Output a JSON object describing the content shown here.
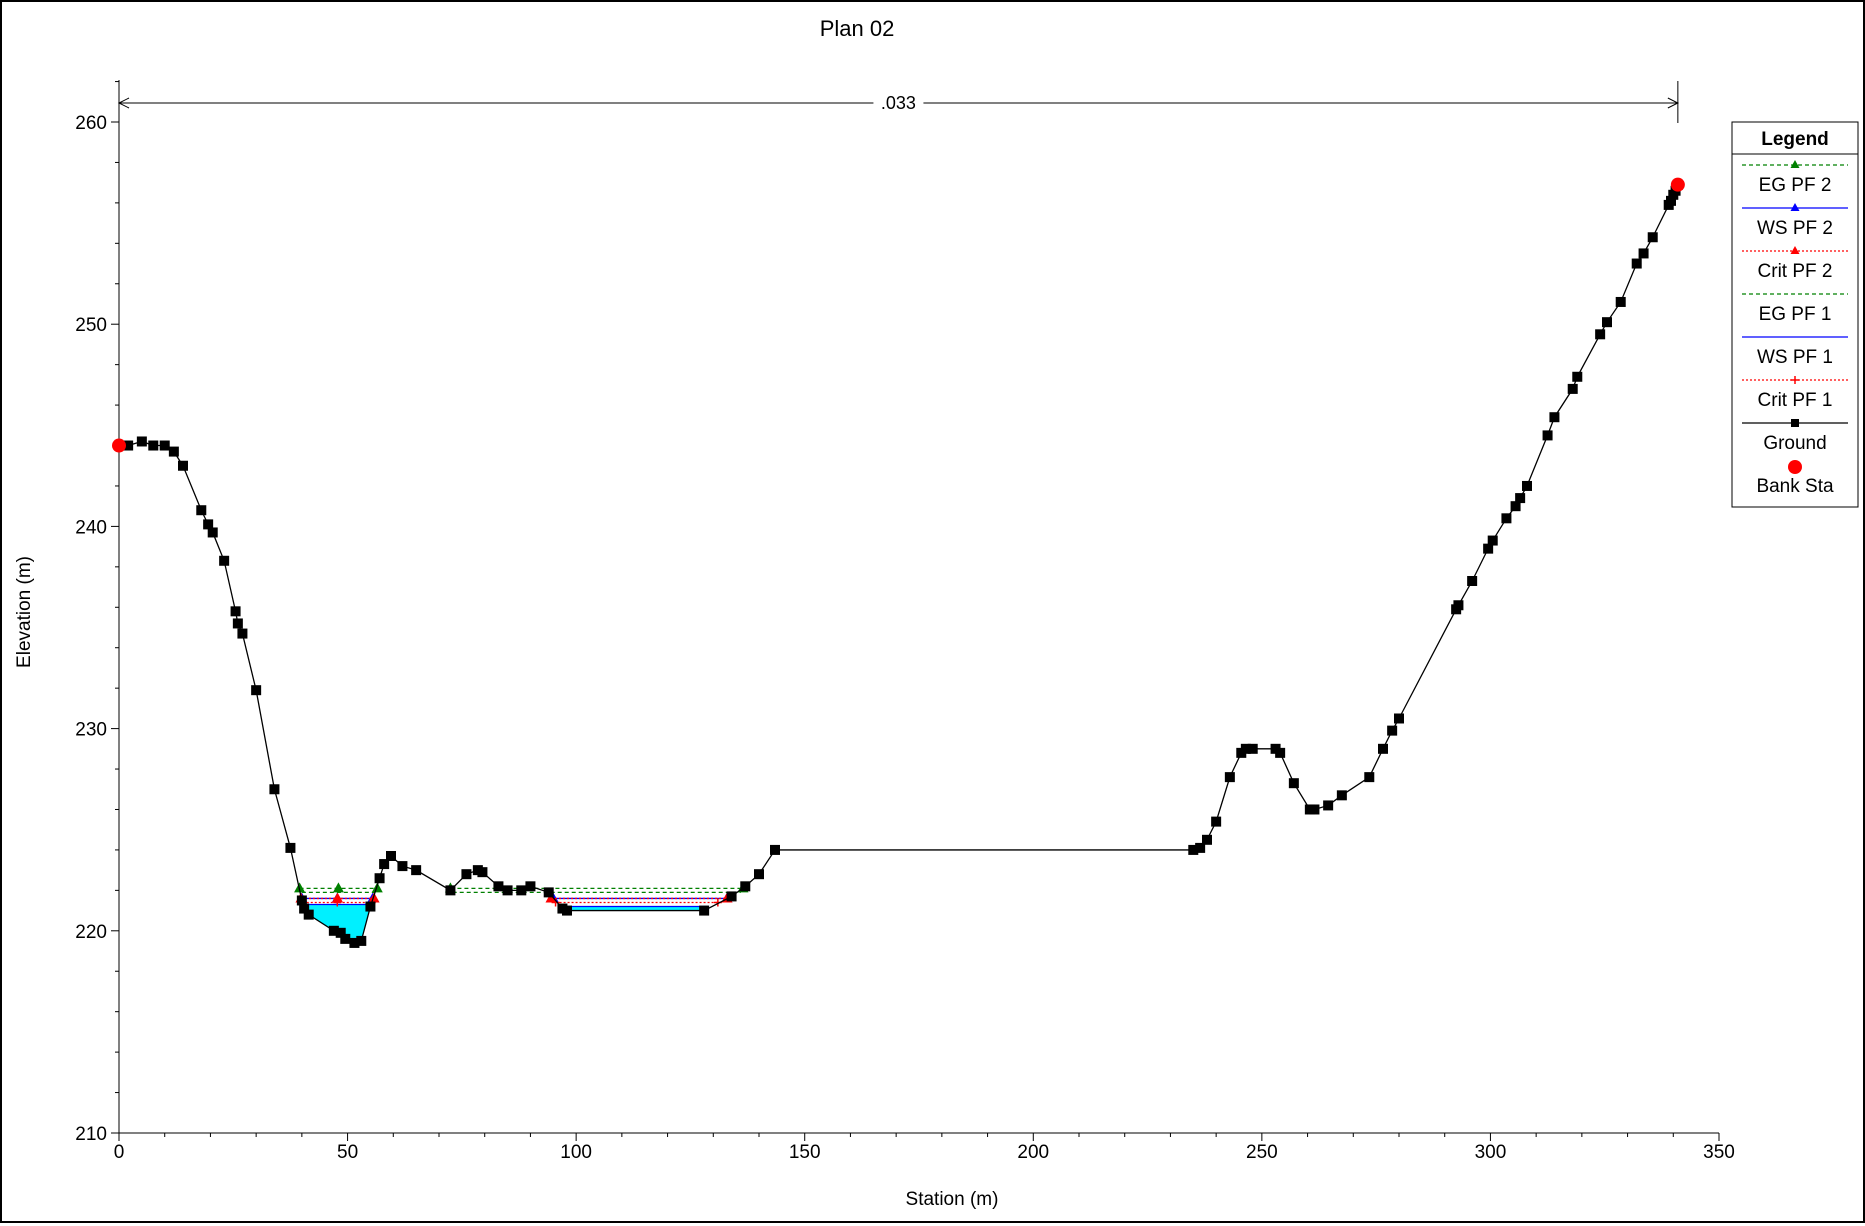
{
  "chart_data": {
    "type": "line",
    "title": "Plan 02",
    "xlabel": "Station (m)",
    "ylabel": "Elevation (m)",
    "xlim": [
      0,
      350
    ],
    "ylim": [
      210,
      262
    ],
    "xticks": [
      0,
      50,
      100,
      150,
      200,
      250,
      300,
      350
    ],
    "yticks": [
      210,
      220,
      230,
      240,
      250,
      260
    ],
    "grid": false,
    "legend_position": "right",
    "manning_n": {
      "label": ".033",
      "from": 0,
      "to": 341
    },
    "legend": {
      "title": "Legend",
      "items": [
        {
          "label": "EG PF 2",
          "color": "#008000",
          "line": "dashed",
          "marker": "triangle"
        },
        {
          "label": "WS PF 2",
          "color": "#0000ff",
          "line": "solid",
          "marker": "triangle"
        },
        {
          "label": "Crit PF 2",
          "color": "#ff0000",
          "line": "dotted",
          "marker": "triangle"
        },
        {
          "label": "EG PF 1",
          "color": "#008000",
          "line": "dashed",
          "marker": "none"
        },
        {
          "label": "WS PF 1",
          "color": "#0000ff",
          "line": "solid",
          "marker": "none"
        },
        {
          "label": "Crit PF 1",
          "color": "#ff0000",
          "line": "dotted",
          "marker": "plus"
        },
        {
          "label": "Ground",
          "color": "#000000",
          "line": "solid",
          "marker": "square"
        },
        {
          "label": "Bank Sta",
          "color": "#ff0000",
          "line": "none",
          "marker": "circle"
        }
      ]
    },
    "ground": {
      "name": "Ground",
      "color": "#000000",
      "points": [
        [
          0,
          244.0
        ],
        [
          2,
          244.0
        ],
        [
          5,
          244.2
        ],
        [
          7.5,
          244.0
        ],
        [
          10,
          244.0
        ],
        [
          12,
          243.7
        ],
        [
          14,
          243.0
        ],
        [
          18,
          240.8
        ],
        [
          19.5,
          240.1
        ],
        [
          20.5,
          239.7
        ],
        [
          23,
          238.3
        ],
        [
          25.5,
          235.8
        ],
        [
          26,
          235.2
        ],
        [
          27,
          234.7
        ],
        [
          30,
          231.9
        ],
        [
          34,
          227.0
        ],
        [
          37.5,
          224.1
        ],
        [
          40,
          221.5
        ],
        [
          40.5,
          221.1
        ],
        [
          41.5,
          220.8
        ],
        [
          47,
          220.0
        ],
        [
          48.5,
          219.9
        ],
        [
          49.5,
          219.6
        ],
        [
          51.5,
          219.4
        ],
        [
          53,
          219.5
        ],
        [
          55,
          221.2
        ],
        [
          57,
          222.6
        ],
        [
          58,
          223.3
        ],
        [
          59.5,
          223.7
        ],
        [
          62,
          223.2
        ],
        [
          65,
          223.0
        ],
        [
          72.5,
          222.0
        ],
        [
          76,
          222.8
        ],
        [
          78.5,
          223.0
        ],
        [
          79.5,
          222.9
        ],
        [
          83,
          222.2
        ],
        [
          85,
          222.0
        ],
        [
          88,
          222.0
        ],
        [
          90,
          222.2
        ],
        [
          94,
          221.9
        ],
        [
          97,
          221.1
        ],
        [
          98,
          221.0
        ],
        [
          128,
          221.0
        ],
        [
          134,
          221.7
        ],
        [
          137,
          222.2
        ],
        [
          140,
          222.8
        ],
        [
          143.5,
          224.0
        ],
        [
          235,
          224.0
        ],
        [
          236.5,
          224.1
        ],
        [
          238,
          224.5
        ],
        [
          240,
          225.4
        ],
        [
          243,
          227.6
        ],
        [
          245.5,
          228.8
        ],
        [
          246.5,
          229.0
        ],
        [
          248,
          229.0
        ],
        [
          253,
          229.0
        ],
        [
          254,
          228.8
        ],
        [
          257,
          227.3
        ],
        [
          260.5,
          226.0
        ],
        [
          261.5,
          226.0
        ],
        [
          264.5,
          226.2
        ],
        [
          267.5,
          226.7
        ],
        [
          273.5,
          227.6
        ],
        [
          276.5,
          229.0
        ],
        [
          278.5,
          229.9
        ],
        [
          280,
          230.5
        ],
        [
          292.5,
          235.9
        ],
        [
          293,
          236.1
        ],
        [
          296,
          237.3
        ],
        [
          299.5,
          238.9
        ],
        [
          300.5,
          239.3
        ],
        [
          303.5,
          240.4
        ],
        [
          305.5,
          241.0
        ],
        [
          306.5,
          241.4
        ],
        [
          308,
          242.0
        ],
        [
          312.5,
          244.5
        ],
        [
          314,
          245.4
        ],
        [
          318,
          246.8
        ],
        [
          319,
          247.4
        ],
        [
          324,
          249.5
        ],
        [
          325.5,
          250.1
        ],
        [
          328.5,
          251.1
        ],
        [
          332,
          253.0
        ],
        [
          333.5,
          253.5
        ],
        [
          335.5,
          254.3
        ],
        [
          339,
          255.9
        ],
        [
          339.5,
          256.1
        ],
        [
          340,
          256.4
        ],
        [
          340.5,
          256.6
        ],
        [
          341,
          256.9
        ]
      ]
    },
    "bank_stations": [
      [
        0,
        244.0
      ],
      [
        341,
        256.9
      ]
    ],
    "water_pools": [
      {
        "from": 40,
        "to": 55.5,
        "elevation": 221.3,
        "color": "#00f0ff"
      },
      {
        "from": 97,
        "to": 128.5,
        "elevation": 221.2,
        "color": "#00f0ff"
      }
    ],
    "series": [
      {
        "name": "EG PF 2",
        "color": "#008000",
        "dash": "4,3",
        "marker": "triangle",
        "segments": [
          [
            [
              39.5,
              222.1
            ],
            [
              56.5,
              222.1
            ]
          ],
          [
            [
              72.5,
              222.1
            ],
            [
              136.5,
              222.1
            ]
          ]
        ]
      },
      {
        "name": "WS PF 2",
        "color": "#0000ff",
        "dash": "",
        "marker": "triangle",
        "segments": [
          [
            [
              40,
              221.6
            ],
            [
              55.5,
              221.6
            ]
          ],
          [
            [
              95,
              221.6
            ],
            [
              133,
              221.6
            ]
          ]
        ]
      },
      {
        "name": "Crit PF 2",
        "color": "#ff0000",
        "dash": "2,2",
        "marker": "triangle",
        "segments": [
          [
            [
              39.8,
              221.6
            ],
            [
              55.8,
              221.6
            ]
          ],
          [
            [
              94.5,
              221.6
            ],
            [
              133,
              221.6
            ]
          ]
        ]
      },
      {
        "name": "EG PF 1",
        "color": "#008000",
        "dash": "4,3",
        "marker": "none",
        "segments": [
          [
            [
              40,
              221.9
            ],
            [
              56,
              221.9
            ]
          ],
          [
            [
              73,
              221.9
            ],
            [
              136,
              221.9
            ]
          ]
        ]
      },
      {
        "name": "WS PF 1",
        "color": "#0000ff",
        "dash": "",
        "marker": "none",
        "segments": [
          [
            [
              40.2,
              221.3
            ],
            [
              55.3,
              221.3
            ]
          ],
          [
            [
              96.5,
              221.2
            ],
            [
              129,
              221.2
            ]
          ]
        ]
      },
      {
        "name": "Crit PF 1",
        "color": "#ff0000",
        "dash": "2,2",
        "marker": "plus",
        "segments": [
          [
            [
              40.2,
              221.4
            ],
            [
              55.3,
              221.4
            ]
          ],
          [
            [
              95.5,
              221.4
            ],
            [
              131,
              221.4
            ]
          ]
        ]
      }
    ]
  }
}
